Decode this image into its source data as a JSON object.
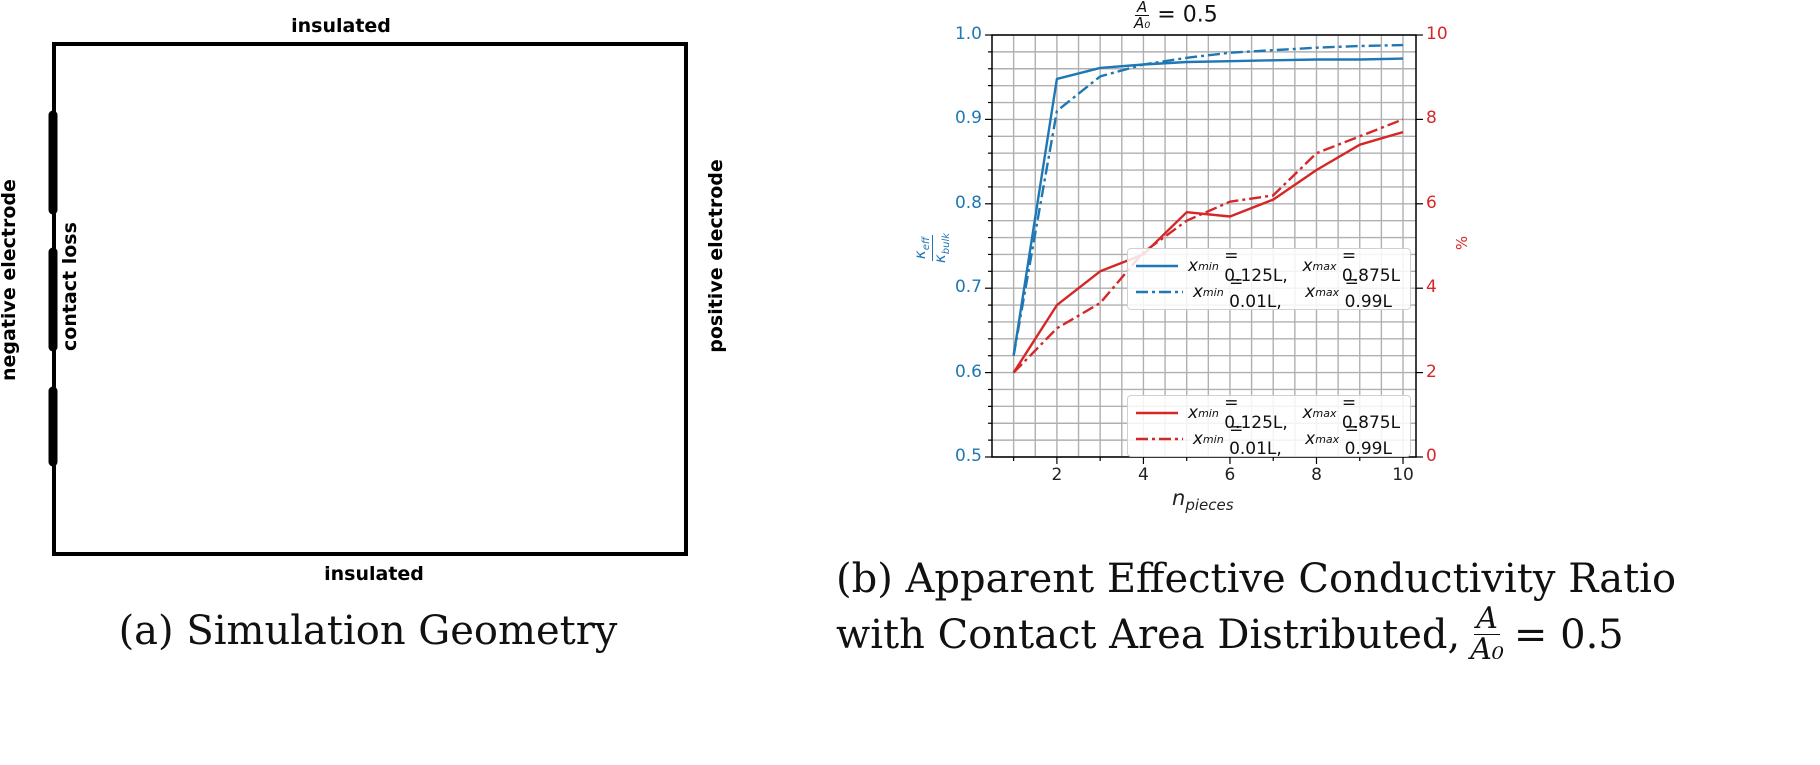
{
  "panel_a": {
    "labels": {
      "top": "insulated",
      "bottom": "insulated",
      "left": "negative electrode",
      "contact": "contact loss",
      "right": "positive electrode"
    },
    "caption": "(a) Simulation Geometry"
  },
  "panel_b": {
    "caption_line1": "(b) Apparent Effective Conductivity Ratio",
    "caption_line2_prefix": "with Contact Area Distributed,",
    "caption_frac_num": "A",
    "caption_frac_den": "A₀",
    "caption_line2_suffix": "= 0.5"
  },
  "chart_data": {
    "type": "line",
    "title": "A/A₀ = 0.5",
    "title_num": "A",
    "title_den": "A₀",
    "title_suffix": "= 0.5",
    "xlabel": "n_pieces",
    "xlabel_main": "n",
    "xlabel_sub": "pieces",
    "ylabel": "κ_eff / κ_bulk",
    "ylabel_num": "κ",
    "ylabel_num_sub": "eff",
    "ylabel_den": "κ",
    "ylabel_den_sub": "bulk",
    "y2label": "%",
    "x": [
      1,
      2,
      3,
      4,
      5,
      6,
      7,
      8,
      9,
      10
    ],
    "xlim": [
      0.5,
      10.3
    ],
    "ylim": [
      0.5,
      1.0
    ],
    "y2lim": [
      0,
      10
    ],
    "xticks": [
      "2",
      "4",
      "6",
      "8",
      "10"
    ],
    "yticks": [
      "1.0",
      "0.9",
      "0.8",
      "0.7",
      "0.6",
      "0.5"
    ],
    "y2ticks": [
      "10",
      "8",
      "6",
      "4",
      "2",
      "0"
    ],
    "grid": true,
    "colors": {
      "blue": "#1f77b4",
      "red": "#d62728",
      "grid": "#b0b0b0"
    },
    "series": [
      {
        "name": "x_min = 0.125L, x_max = 0.875L",
        "axis": "left",
        "color": "#1f77b4",
        "style": "solid",
        "values": [
          0.62,
          0.948,
          0.961,
          0.965,
          0.968,
          0.969,
          0.97,
          0.971,
          0.971,
          0.972
        ]
      },
      {
        "name": "x_min = 0.01L, x_max = 0.99L",
        "axis": "left",
        "color": "#1f77b4",
        "style": "dashdot",
        "values": [
          0.62,
          0.91,
          0.951,
          0.965,
          0.973,
          0.979,
          0.982,
          0.985,
          0.987,
          0.988
        ]
      },
      {
        "name": "x_min = 0.125L, x_max = 0.875L",
        "axis": "right",
        "color": "#d62728",
        "style": "solid",
        "values": [
          2.0,
          3.6,
          4.4,
          4.8,
          5.8,
          5.7,
          6.1,
          6.8,
          7.4,
          7.7
        ]
      },
      {
        "name": "x_min = 0.01L, x_max = 0.99L",
        "axis": "right",
        "color": "#d62728",
        "style": "dashdot",
        "values": [
          2.0,
          3.05,
          3.65,
          4.85,
          5.6,
          6.05,
          6.2,
          7.2,
          7.6,
          8.0
        ]
      }
    ],
    "legends": [
      {
        "position": "center-right",
        "entries": [
          {
            "label_a": "x",
            "sub_a": "min",
            "val_a": "= 0.125L,",
            "label_b": "x",
            "sub_b": "max",
            "val_b": "= 0.875L"
          },
          {
            "label_a": "x",
            "sub_a": "min",
            "val_a": "= 0.01L,",
            "label_b": "x",
            "sub_b": "max",
            "val_b": "= 0.99L"
          }
        ]
      },
      {
        "position": "lower-right",
        "entries": [
          {
            "label_a": "x",
            "sub_a": "min",
            "val_a": "= 0.125L,",
            "label_b": "x",
            "sub_b": "max",
            "val_b": "= 0.875L"
          },
          {
            "label_a": "x",
            "sub_a": "min",
            "val_a": "= 0.01L,",
            "label_b": "x",
            "sub_b": "max",
            "val_b": "= 0.99L"
          }
        ]
      }
    ]
  }
}
